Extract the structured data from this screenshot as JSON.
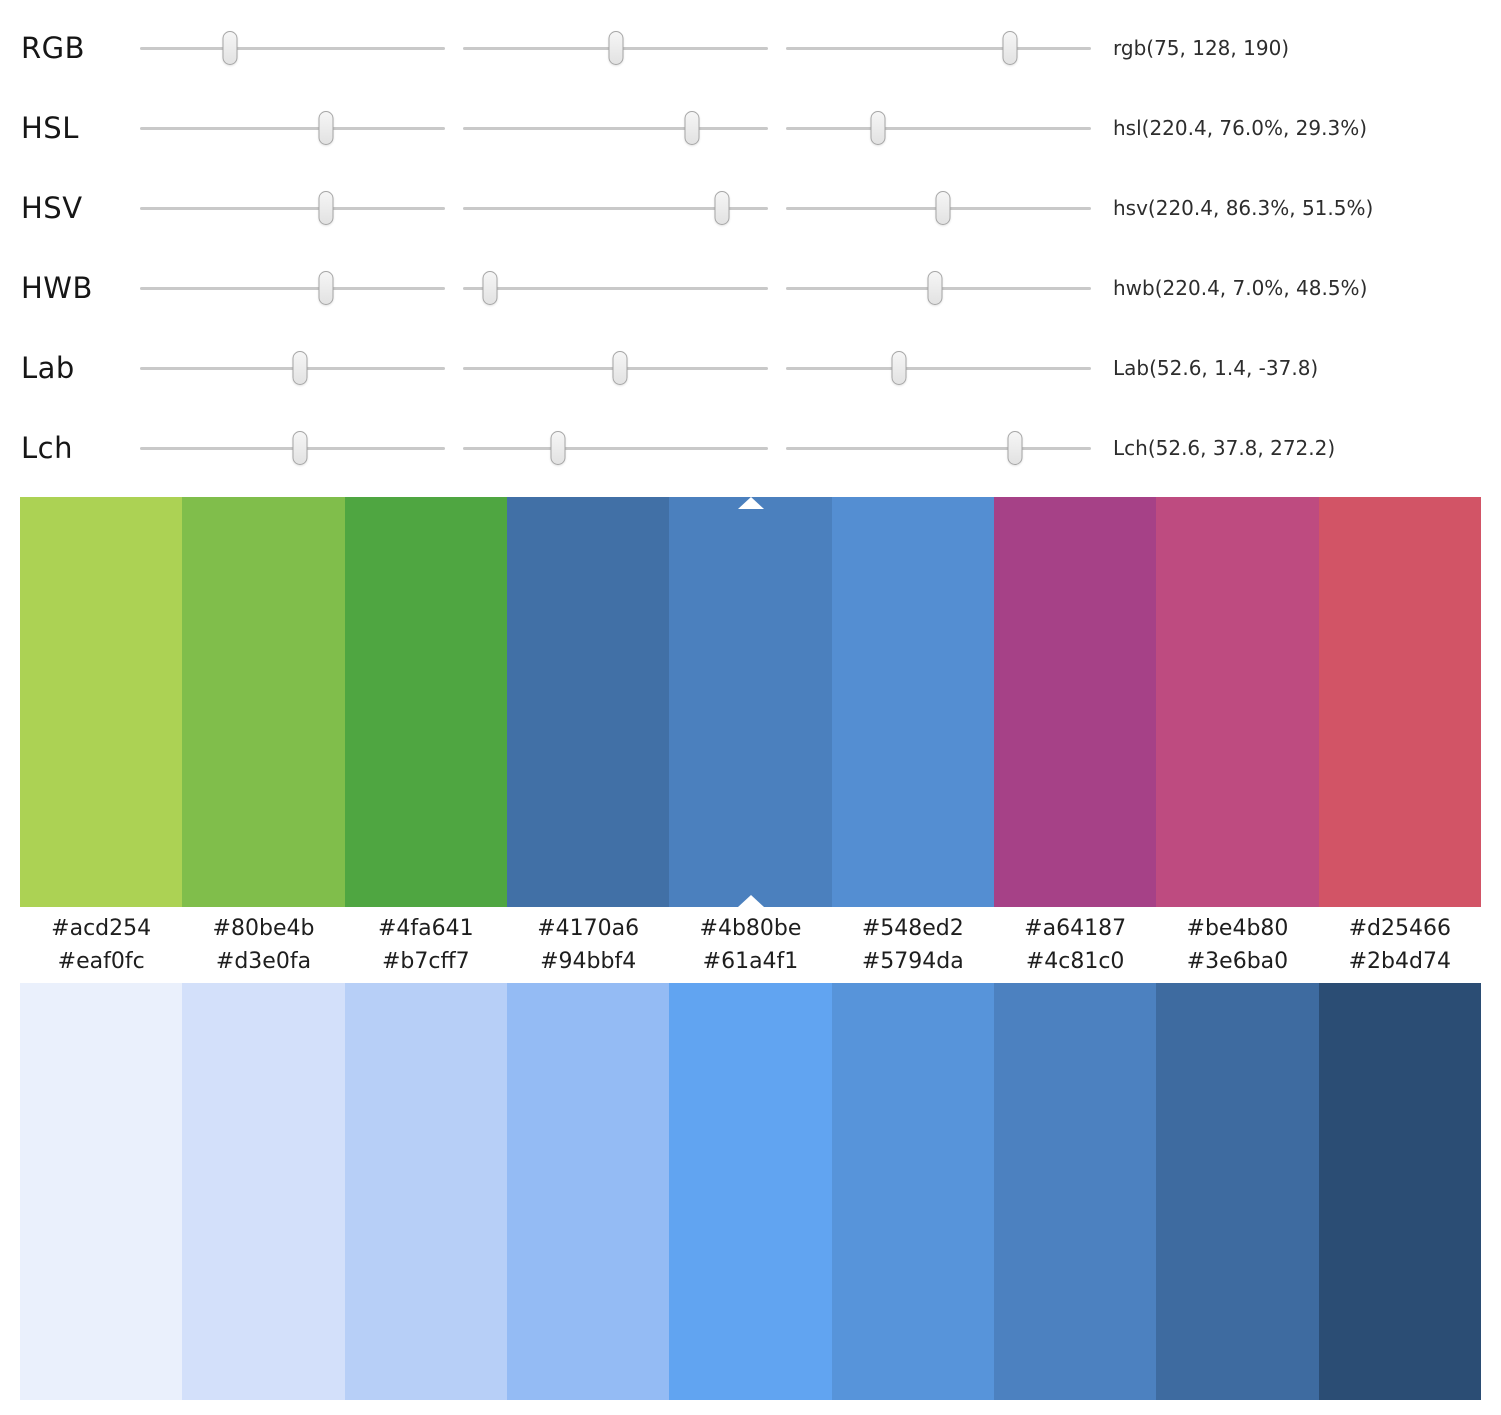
{
  "sliders": {
    "rows": [
      {
        "label": "RGB",
        "value": "rgb(75, 128, 190)",
        "handles": [
          29.5,
          50.2,
          73.5
        ]
      },
      {
        "label": "HSL",
        "value": "hsl(220.4, 76.0%, 29.3%)",
        "handles": [
          61.0,
          75.0,
          30.0
        ]
      },
      {
        "label": "HSV",
        "value": "hsv(220.4, 86.3%, 51.5%)",
        "handles": [
          61.0,
          85.0,
          51.5
        ]
      },
      {
        "label": "HWB",
        "value": "hwb(220.4, 7.0%, 48.5%)",
        "handles": [
          61.0,
          9.0,
          49.0
        ]
      },
      {
        "label": "Lab",
        "value": "Lab(52.6, 1.4, -37.8)",
        "handles": [
          52.5,
          51.5,
          37.0
        ]
      },
      {
        "label": "Lch",
        "value": "Lch(52.6, 37.8, 272.2)",
        "handles": [
          52.5,
          31.0,
          75.0
        ]
      }
    ]
  },
  "palettes": [
    {
      "name": "hue-variations",
      "selected_index": 4,
      "swatches": [
        "#acd254",
        "#80be4b",
        "#4fa641",
        "#4170a6",
        "#4b80be",
        "#548ed2",
        "#a64187",
        "#be4b80",
        "#d25466"
      ]
    },
    {
      "name": "tints-and-shades",
      "swatches": [
        "#eaf0fc",
        "#d3e0fa",
        "#b7cff7",
        "#94bbf4",
        "#61a4f1",
        "#5794da",
        "#4c81c0",
        "#3e6ba0",
        "#2b4d74"
      ]
    }
  ]
}
